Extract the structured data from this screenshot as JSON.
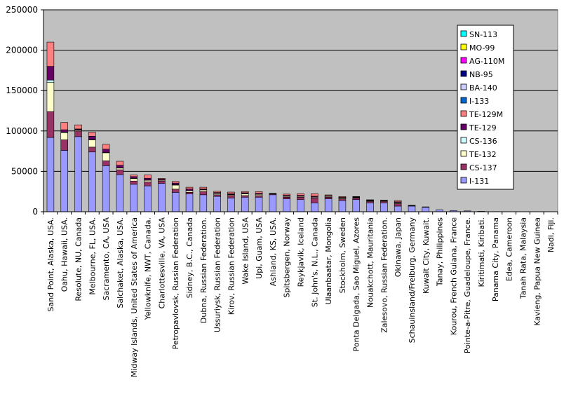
{
  "chart_data": {
    "type": "bar",
    "stacked": true,
    "title": "",
    "xlabel": "",
    "ylabel": "",
    "ylim": [
      0,
      250000
    ],
    "yticks": [
      0,
      50000,
      100000,
      150000,
      200000,
      250000
    ],
    "ytick_labels": [
      "0",
      "50000",
      "100000",
      "150000",
      "200000",
      "250000"
    ],
    "grid": "horizontal",
    "legend_position": "right",
    "background": "#c0c0c0",
    "categories": [
      "Sand Point, Alaska, USA.",
      "Oahu, Hawaii, USA.",
      "Resolute, NU, Canada",
      "Melbourne, FL, USA.",
      "Sacramento, CA, USA",
      "Salchaket, Alaska, USA.",
      "Midway Islands, United States of America",
      "Yellowknife, NWT, Canada.",
      "Charlottesville, VA, USA",
      "Petropavlovsk, Russian Federation",
      "Sidney, B.C., Canada",
      "Dubna, Russian Federation.",
      "Ussuriysk, Russian Federation",
      "Kirov, Russian Federation",
      "Wake Island, USA",
      "Upi, Guam, USA",
      "Ashland, KS, USA.",
      "Spitsbergen, Norway",
      "Reykjavik, Iceland",
      "St. John's, N.L., Canada",
      "Ulaanbaatar, Mongolia",
      "Stockholm, Sweden",
      "Ponta Delgada, Sao Miguel, Azores",
      "Nouakchott, Mauritania",
      "Zalesovo, Russian Federation.",
      "Okinawa, Japan",
      "Schauinsland/Freiburg, Germany",
      "Kuwait City, Kuwait.",
      "Tanay, Philippines",
      "Kourou, French Guiana, France",
      "Pointe-a-Pitre, Guadeloupe, France.",
      "Kiritimati, Kiribati.",
      "Panama City, Panama",
      "Edea, Cameroon",
      "Tanah Rata, Malaysia",
      "Kavieng, Papua New Guinea",
      "Nadi, Fiji."
    ],
    "series": [
      {
        "name": "I-131",
        "color": "#9999ff",
        "values": [
          92000,
          76000,
          93000,
          74000,
          57000,
          46000,
          34000,
          32000,
          35000,
          24000,
          22000,
          21000,
          19000,
          17000,
          18000,
          18000,
          21000,
          16000,
          15000,
          11000,
          16000,
          14000,
          15000,
          11000,
          11000,
          7000,
          7000,
          5500,
          2500,
          1500,
          1000,
          500,
          200,
          100,
          0,
          0,
          0
        ]
      },
      {
        "name": "CS-137",
        "color": "#993366",
        "values": [
          32000,
          13000,
          7000,
          6000,
          6000,
          6000,
          4000,
          5000,
          3000,
          4000,
          2000,
          4000,
          2000,
          3000,
          2000,
          2000,
          1000,
          2000,
          3000,
          6000,
          2000,
          2000,
          2000,
          2000,
          2000,
          3000,
          500,
          200,
          0,
          0,
          0,
          0,
          0,
          0,
          0,
          0,
          0
        ]
      },
      {
        "name": "TE-132",
        "color": "#ffffcc",
        "values": [
          36000,
          9000,
          1000,
          9000,
          10000,
          2000,
          3000,
          2000,
          1000,
          5000,
          2000,
          2000,
          1500,
          1000,
          2000,
          1500,
          0,
          1000,
          1000,
          1000,
          1000,
          1000,
          500,
          500,
          0,
          1000,
          0,
          0,
          0,
          0,
          0,
          0,
          0,
          0,
          0,
          0,
          0
        ]
      },
      {
        "name": "CS-136",
        "color": "#ccffff",
        "values": [
          3000,
          500,
          500,
          500,
          500,
          500,
          500,
          500,
          300,
          500,
          300,
          300,
          300,
          300,
          500,
          300,
          0,
          300,
          300,
          300,
          300,
          300,
          300,
          300,
          300,
          300,
          0,
          0,
          0,
          0,
          0,
          0,
          0,
          0,
          0,
          0,
          0
        ]
      },
      {
        "name": "TE-129",
        "color": "#660066",
        "values": [
          17000,
          3000,
          1000,
          4000,
          4000,
          3000,
          2000,
          2000,
          1000,
          2000,
          2000,
          1000,
          1000,
          1000,
          1000,
          1000,
          300,
          1000,
          1000,
          1000,
          500,
          500,
          500,
          500,
          500,
          1000,
          300,
          200,
          0,
          0,
          0,
          0,
          0,
          0,
          0,
          0,
          0
        ]
      },
      {
        "name": "TE-129M",
        "color": "#ff8080",
        "values": [
          30000,
          9000,
          5000,
          5000,
          6000,
          5000,
          2000,
          4000,
          1000,
          2000,
          2000,
          2000,
          1500,
          2000,
          1500,
          2000,
          500,
          1500,
          2000,
          3000,
          1000,
          1000,
          500,
          500,
          500,
          1500,
          200,
          100,
          0,
          0,
          0,
          0,
          0,
          0,
          0,
          0,
          0
        ]
      },
      {
        "name": "I-133",
        "color": "#0066cc",
        "values": [
          0,
          0,
          0,
          0,
          0,
          0,
          0,
          0,
          0,
          0,
          0,
          0,
          0,
          0,
          0,
          0,
          0,
          0,
          0,
          0,
          0,
          0,
          0,
          0,
          0,
          0,
          0,
          0,
          0,
          0,
          0,
          0,
          0,
          0,
          0,
          0,
          0
        ]
      },
      {
        "name": "BA-140",
        "color": "#ccccff",
        "values": [
          0,
          0,
          0,
          0,
          0,
          0,
          0,
          0,
          0,
          0,
          0,
          0,
          0,
          0,
          0,
          0,
          0,
          0,
          0,
          0,
          0,
          0,
          0,
          0,
          0,
          0,
          0,
          0,
          0,
          0,
          0,
          0,
          0,
          0,
          0,
          0,
          0
        ]
      },
      {
        "name": "NB-95",
        "color": "#000080",
        "values": [
          0,
          0,
          0,
          0,
          0,
          0,
          0,
          0,
          0,
          0,
          0,
          0,
          0,
          0,
          0,
          0,
          0,
          0,
          0,
          0,
          0,
          0,
          0,
          0,
          0,
          0,
          0,
          0,
          0,
          0,
          0,
          0,
          0,
          0,
          0,
          0,
          0
        ]
      },
      {
        "name": "AG-110M",
        "color": "#ff00ff",
        "values": [
          0,
          0,
          0,
          0,
          0,
          0,
          0,
          0,
          0,
          0,
          0,
          0,
          0,
          0,
          0,
          0,
          0,
          0,
          0,
          0,
          0,
          0,
          0,
          0,
          0,
          0,
          0,
          0,
          0,
          0,
          0,
          0,
          0,
          0,
          0,
          0,
          0
        ]
      },
      {
        "name": "MO-99",
        "color": "#ffff00",
        "values": [
          0,
          0,
          0,
          0,
          0,
          0,
          0,
          0,
          0,
          0,
          0,
          0,
          0,
          0,
          0,
          0,
          0,
          0,
          0,
          0,
          0,
          0,
          0,
          0,
          0,
          0,
          0,
          0,
          0,
          0,
          0,
          0,
          0,
          0,
          0,
          0,
          0
        ]
      },
      {
        "name": "SN-113",
        "color": "#00ffff",
        "values": [
          0,
          0,
          0,
          0,
          0,
          0,
          0,
          0,
          0,
          0,
          0,
          0,
          0,
          0,
          0,
          0,
          0,
          0,
          0,
          0,
          0,
          0,
          0,
          0,
          0,
          0,
          0,
          0,
          0,
          0,
          0,
          0,
          0,
          0,
          0,
          0,
          0
        ]
      }
    ]
  }
}
